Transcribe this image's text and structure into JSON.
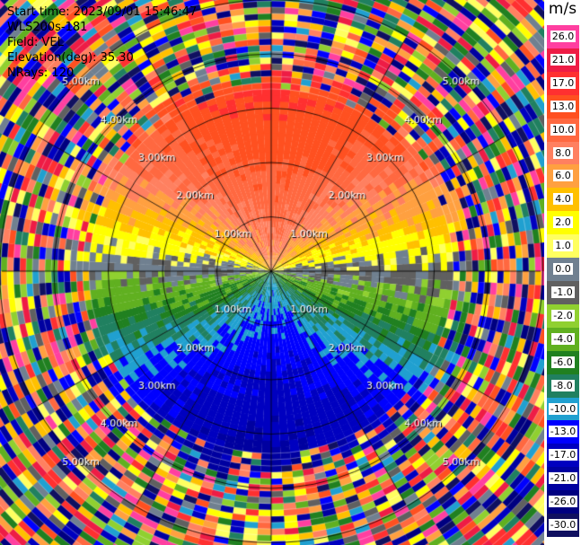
{
  "header": {
    "start_time": "Start time: 2023/09/01 15:46:47",
    "instrument": "WLS200s-181",
    "field": "Field: VEL",
    "elevation": "Elevation(deg): 35.30",
    "nrays": "NRays: 120"
  },
  "colorbar": {
    "unit": "m/s",
    "ticks": [
      "26.0",
      "21.0",
      "17.0",
      "13.0",
      "10.0",
      "8.0",
      "6.0",
      "4.0",
      "2.0",
      "1.0",
      "0.0",
      "-1.0",
      "-2.0",
      "-4.0",
      "-6.0",
      "-8.0",
      "-10.0",
      "-13.0",
      "-17.0",
      "-21.0",
      "-26.0",
      "-30.0"
    ],
    "colors": [
      "#ff3fa0",
      "#ee1c45",
      "#ff3030",
      "#ff5020",
      "#ff6840",
      "#ff8060",
      "#ffa040",
      "#ffc000",
      "#ffff00",
      "#ffff60",
      "#708090",
      "#606060",
      "#90d030",
      "#60b020",
      "#208020",
      "#208060",
      "#20a0d0",
      "#0000ff",
      "#0000c0",
      "#0000a0",
      "#000080",
      "#101060"
    ]
  },
  "range_labels": [
    "1.00km",
    "2.00km",
    "3.00km",
    "4.00km",
    "5.00km"
  ],
  "scan": {
    "rays": 120,
    "gates_per_km": 12,
    "max_range_km": 5.6
  }
}
